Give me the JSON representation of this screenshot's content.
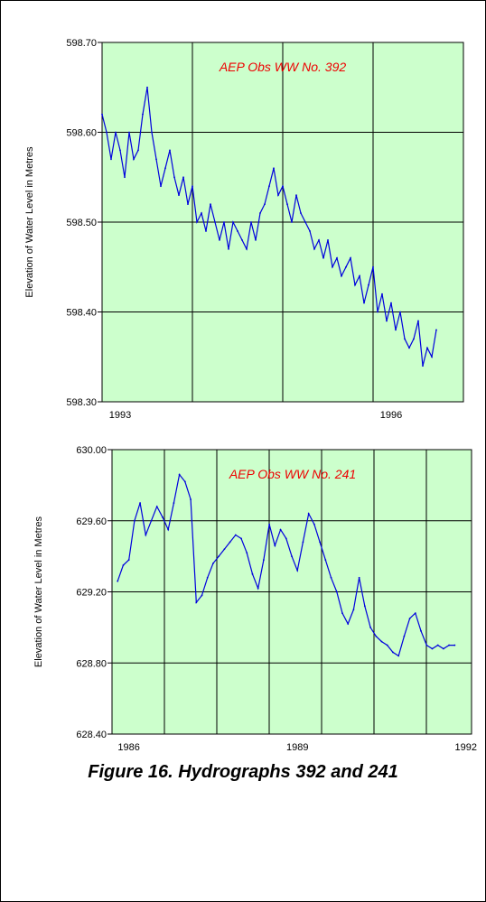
{
  "caption": "Figure 16. Hydrographs 392 and 241",
  "colors": {
    "plot_bg": "#ccffcc",
    "series": "#0000dd",
    "title": "#ee0000",
    "grid": "#000000"
  },
  "chart_data": [
    {
      "type": "line",
      "title": "AEP Obs WW No. 392",
      "ylabel": "Elevation of Water Level in Metres",
      "xlabel": "",
      "ylim": [
        598.3,
        598.7
      ],
      "yticks": [
        "598.70",
        "598.60",
        "598.50",
        "598.40",
        "598.30"
      ],
      "xticks": [
        "1993",
        "1996"
      ],
      "xlim": [
        1992.8,
        1996.8
      ],
      "series": [
        {
          "x": [
            1992.8,
            1992.85,
            1992.9,
            1992.95,
            1993.0,
            1993.05,
            1993.1,
            1993.15,
            1993.2,
            1993.25,
            1993.3,
            1993.35,
            1993.4,
            1993.45,
            1993.5,
            1993.55,
            1993.6,
            1993.65,
            1993.7,
            1993.75,
            1993.8,
            1993.85,
            1993.9,
            1993.95,
            1994.0,
            1994.05,
            1994.1,
            1994.15,
            1994.2,
            1994.25,
            1994.3,
            1994.35,
            1994.4,
            1994.45,
            1994.5,
            1994.55,
            1994.6,
            1994.65,
            1994.7,
            1994.75,
            1994.8,
            1994.85,
            1994.9,
            1994.95,
            1995.0,
            1995.05,
            1995.1,
            1995.15,
            1995.2,
            1995.25,
            1995.3,
            1995.35,
            1995.4,
            1995.45,
            1995.5,
            1995.55,
            1995.6,
            1995.65,
            1995.7,
            1995.75,
            1995.8,
            1995.85,
            1995.9,
            1995.95,
            1996.0,
            1996.05,
            1996.1,
            1996.15,
            1996.2,
            1996.25,
            1996.3,
            1996.35,
            1996.4,
            1996.45,
            1996.5
          ],
          "values": [
            598.62,
            598.6,
            598.57,
            598.6,
            598.58,
            598.55,
            598.6,
            598.57,
            598.58,
            598.62,
            598.65,
            598.6,
            598.57,
            598.54,
            598.56,
            598.58,
            598.55,
            598.53,
            598.55,
            598.52,
            598.54,
            598.5,
            598.51,
            598.49,
            598.52,
            598.5,
            598.48,
            598.5,
            598.47,
            598.5,
            598.49,
            598.48,
            598.47,
            598.5,
            598.48,
            598.51,
            598.52,
            598.54,
            598.56,
            598.53,
            598.54,
            598.52,
            598.5,
            598.53,
            598.51,
            598.5,
            598.49,
            598.47,
            598.48,
            598.46,
            598.48,
            598.45,
            598.46,
            598.44,
            598.45,
            598.46,
            598.43,
            598.44,
            598.41,
            598.43,
            598.45,
            598.4,
            598.42,
            598.39,
            598.41,
            598.38,
            598.4,
            598.37,
            598.36,
            598.37,
            598.39,
            598.34,
            598.36,
            598.35,
            598.38
          ]
        }
      ]
    },
    {
      "type": "line",
      "title": "AEP Obs WW No. 241",
      "ylabel": "Elevation of Water Level in Metres",
      "xlabel": "",
      "ylim": [
        628.4,
        630.0
      ],
      "yticks": [
        "630.00",
        "629.60",
        "629.20",
        "628.80",
        "628.40"
      ],
      "xticks": [
        "1986",
        "1989",
        "1992"
      ],
      "xlim": [
        1985.7,
        1992.1
      ],
      "series": [
        {
          "x": [
            1985.8,
            1985.9,
            1986.0,
            1986.1,
            1986.2,
            1986.3,
            1986.4,
            1986.5,
            1986.6,
            1986.7,
            1986.8,
            1986.9,
            1987.0,
            1987.1,
            1987.2,
            1987.3,
            1987.4,
            1987.5,
            1987.6,
            1987.7,
            1987.8,
            1987.9,
            1988.0,
            1988.1,
            1988.2,
            1988.3,
            1988.4,
            1988.5,
            1988.6,
            1988.7,
            1988.8,
            1988.9,
            1989.0,
            1989.1,
            1989.2,
            1989.3,
            1989.4,
            1989.5,
            1989.6,
            1989.7,
            1989.8,
            1989.9,
            1990.0,
            1990.1,
            1990.2,
            1990.3,
            1990.4,
            1990.5,
            1990.6,
            1990.7,
            1990.8,
            1990.9,
            1991.0,
            1991.1,
            1991.2,
            1991.3,
            1991.4,
            1991.5,
            1991.6,
            1991.7,
            1991.8
          ],
          "values": [
            629.26,
            629.35,
            629.38,
            629.6,
            629.7,
            629.52,
            629.6,
            629.68,
            629.62,
            629.55,
            629.7,
            629.86,
            629.82,
            629.72,
            629.14,
            629.18,
            629.28,
            629.36,
            629.4,
            629.44,
            629.48,
            629.52,
            629.5,
            629.42,
            629.3,
            629.22,
            629.38,
            629.58,
            629.46,
            629.55,
            629.5,
            629.4,
            629.32,
            629.48,
            629.64,
            629.58,
            629.48,
            629.38,
            629.28,
            629.2,
            629.08,
            629.02,
            629.1,
            629.28,
            629.12,
            629.0,
            628.95,
            628.92,
            628.9,
            628.86,
            628.84,
            628.95,
            629.05,
            629.08,
            628.98,
            628.9,
            628.88,
            628.9,
            628.88,
            628.9,
            628.9
          ]
        }
      ]
    }
  ]
}
